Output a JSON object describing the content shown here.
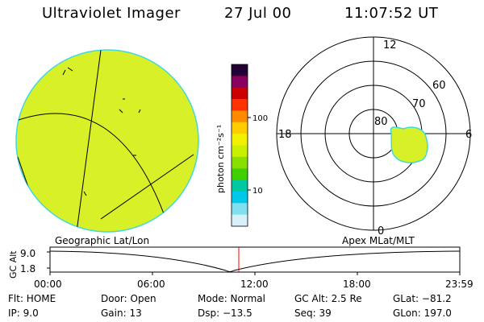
{
  "header": {
    "title": "Ultraviolet Imager",
    "date": "27 Jul 00",
    "time": "11:07:52 UT"
  },
  "colorbar": {
    "unit_label": "photon cm⁻²s⁻¹",
    "ticks": [
      "100",
      "10"
    ],
    "scale": "log",
    "colors": [
      "#220033",
      "#8a0060",
      "#cc0000",
      "#ff3300",
      "#ff8a00",
      "#ffcc00",
      "#f0f000",
      "#c8f000",
      "#88e000",
      "#40d000",
      "#00c8a0",
      "#00c8e8",
      "#80e0f0",
      "#d8f0f8"
    ]
  },
  "geographic_panel": {
    "label": "Geographic Lat/Lon",
    "fill_color": "#d8f028"
  },
  "polar_panel": {
    "label": "Apex MLat/MLT",
    "ring_labels": [
      "80",
      "70",
      "60"
    ],
    "mlt_labels": {
      "top": "12",
      "right": "6",
      "bottom": "0",
      "left": "18"
    }
  },
  "orbit_plot": {
    "ylabel": "GC Alt",
    "y_ticks": [
      "9.0",
      "1.8"
    ],
    "x_ticks": [
      "00:00",
      "06:00",
      "12:00",
      "18:00",
      "23:59"
    ],
    "marker_color": "#ff0000"
  },
  "status": {
    "flt": "Flt: HOME",
    "ip": "IP:  9.0",
    "door": "Door: Open",
    "gain": "Gain: 13",
    "mode": "Mode: Normal",
    "dsp": "Dsp:  −13.5",
    "gc_alt": "GC Alt: 2.5 Re",
    "seq": "Seq: 39",
    "glat": "GLat: −81.2",
    "glon": "GLon: 197.0"
  }
}
